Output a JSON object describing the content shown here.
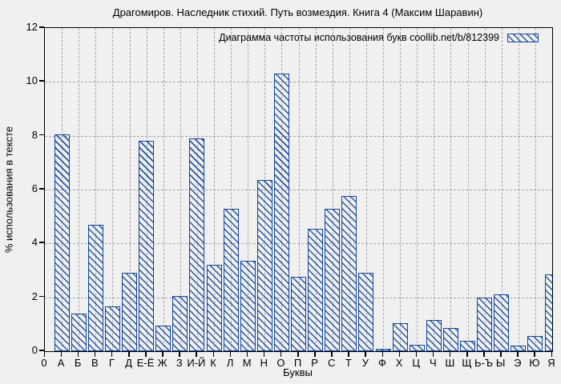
{
  "chart_data": {
    "type": "bar",
    "title": "Драгомиров. Наследник стихий. Путь возмездия. Книга 4 (Максим Шаравин)",
    "legend_label": "Диаграмма частоты использования букв coollib.net/b/812399",
    "xlabel": "Буквы",
    "ylabel": "% использования в тексте",
    "origin_tick_label": "0",
    "ylim": [
      0,
      12
    ],
    "yticks": [
      0,
      2,
      4,
      6,
      8,
      10,
      12
    ],
    "grid": true,
    "legend_position": "top-right",
    "hatch_style": "diagonal-backslash",
    "categories": [
      "А",
      "Б",
      "В",
      "Г",
      "Д",
      "Е-Ё",
      "Ж",
      "З",
      "И-Й",
      "К",
      "Л",
      "М",
      "Н",
      "О",
      "П",
      "Р",
      "С",
      "Т",
      "У",
      "Ф",
      "Х",
      "Ц",
      "Ч",
      "Ш",
      "Щ",
      "Ь-Ъ",
      "Ы",
      "Э",
      "Ю",
      "Я"
    ],
    "values": [
      8.05,
      1.4,
      4.7,
      1.65,
      2.9,
      7.8,
      0.95,
      2.05,
      7.9,
      3.2,
      5.3,
      3.35,
      6.35,
      10.3,
      2.75,
      4.55,
      5.3,
      5.75,
      2.9,
      0.08,
      1.05,
      0.25,
      1.15,
      0.85,
      0.38,
      2.0,
      2.1,
      0.22,
      0.56,
      2.85
    ]
  },
  "colors": {
    "background": "#f0f0f0",
    "bar_border": "#11459e",
    "bar_hatch": "#2554a6",
    "grid": "#a6a6a6",
    "axis": "#000000",
    "text": "#000000"
  }
}
